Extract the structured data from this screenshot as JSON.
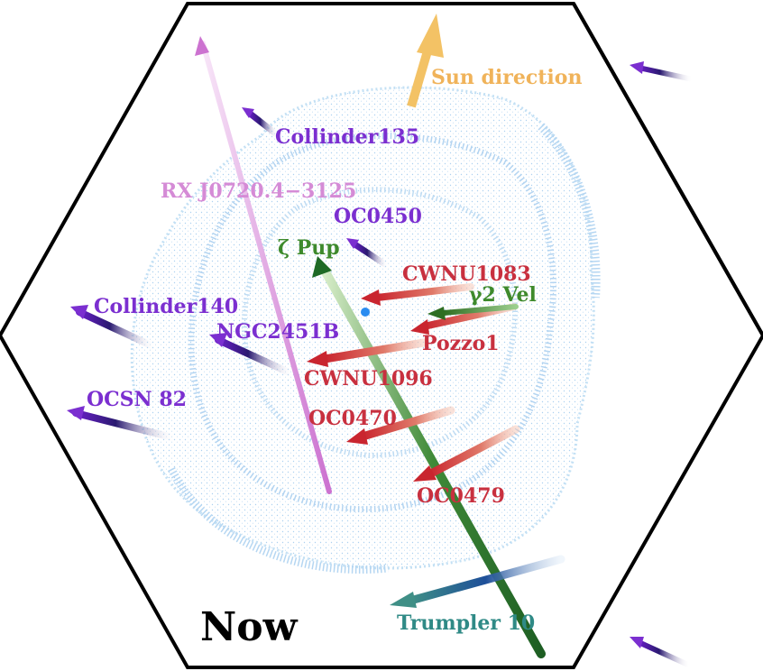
{
  "panel_label": "Now",
  "sun_label": "Sun direction",
  "colors": {
    "background": "#ffffff",
    "frame": "#000000",
    "shell": "#a9cff0",
    "purple_cluster": "#7b2fd0",
    "red_cluster": "#c8303f",
    "green_star": "#3e8a2c",
    "teal_cluster": "#2f8a86",
    "pink_star": "#d58bd6",
    "sun": "#f3c265",
    "center_dot": "#2a8cf0"
  },
  "labels": {
    "collinder135": "Collinder135",
    "rx_j0720": "RX J0720.4−3125",
    "oc0450": "OC0450",
    "zeta_pup": "ζ Pup",
    "cwnu1083": "CWNU1083",
    "gamma2_vel": "γ2 Vel",
    "collinder140": "Collinder140",
    "ngc2451b": "NGC2451B",
    "pozzo1": "Pozzo1",
    "cwnu1096": "CWNU1096",
    "ocsn82": "OCSN 82",
    "oc0470": "OC0470",
    "oc0479": "OC0479",
    "trumpler10": "Trumpler 10"
  }
}
